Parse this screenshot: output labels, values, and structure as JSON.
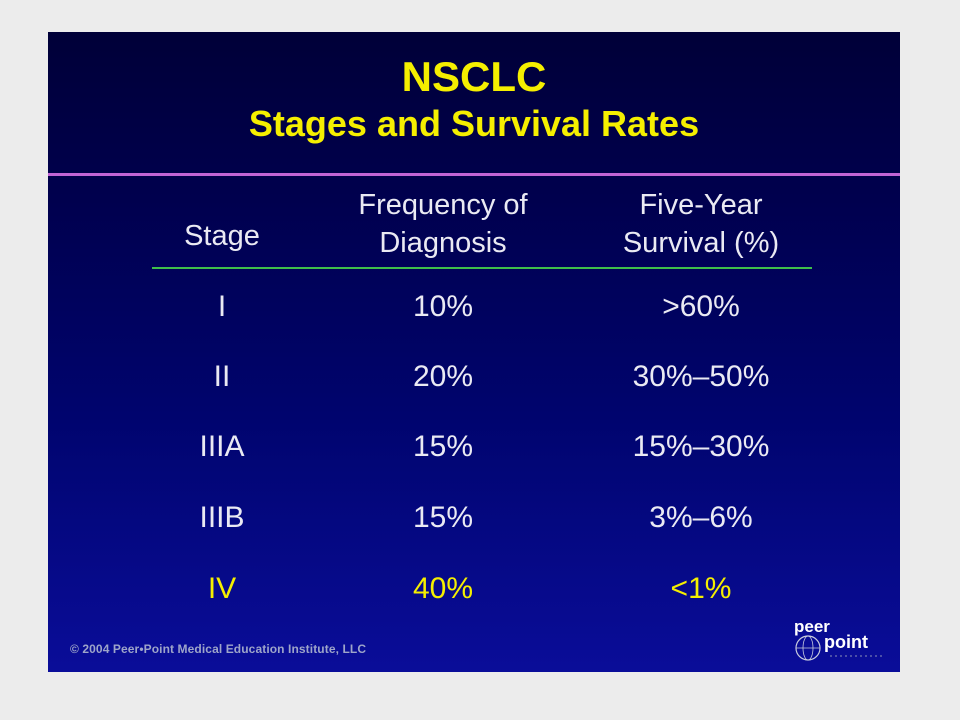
{
  "slide": {
    "title": "NSCLC",
    "subtitle": "Stages and Survival Rates"
  },
  "table": {
    "headers": [
      "Stage",
      "Frequency of\nDiagnosis",
      "Five-Year\nSurvival (%)"
    ],
    "rows": [
      [
        "I",
        "10%",
        ">60%"
      ],
      [
        "II",
        "20%",
        "30%–50%"
      ],
      [
        "IIIA",
        "15%",
        "15%–30%"
      ],
      [
        "IIIB",
        "15%",
        "3%–6%"
      ],
      [
        "IV",
        "40%",
        "<1%"
      ]
    ]
  },
  "footer": {
    "copyright": "© 2004 Peer•Point Medical Education Institute, LLC"
  },
  "logo": {
    "text_top": "peer",
    "text_bottom": "point"
  },
  "colors": {
    "background_top": "#000038",
    "background_bottom": "#0a0d99",
    "title": "#f5ef00",
    "title_rule": "#c264d6",
    "header_rule": "#3fbf4a",
    "text": "#eaeaf3",
    "highlight_row": "#f5ef00"
  }
}
